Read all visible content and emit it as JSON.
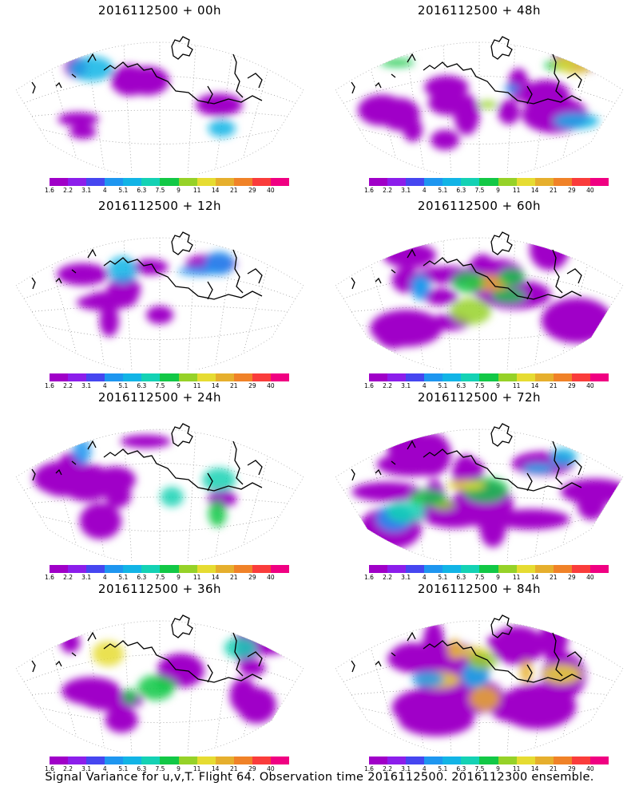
{
  "panels": [
    {
      "title": "2016112500 + 00h",
      "intensity": 0.15
    },
    {
      "title": "2016112500 + 48h",
      "intensity": 0.55
    },
    {
      "title": "2016112500 + 12h",
      "intensity": 0.25
    },
    {
      "title": "2016112500 + 60h",
      "intensity": 0.65
    },
    {
      "title": "2016112500 + 24h",
      "intensity": 0.35
    },
    {
      "title": "2016112500 + 72h",
      "intensity": 0.75
    },
    {
      "title": "2016112500 + 36h",
      "intensity": 0.45
    },
    {
      "title": "2016112500 + 84h",
      "intensity": 0.85
    }
  ],
  "colorbar": {
    "labels": [
      "1.6",
      "2.2",
      "3.1",
      "4",
      "5.1",
      "6.3",
      "7.5",
      "9",
      "11",
      "14",
      "21",
      "29",
      "40"
    ],
    "colors": [
      "#a000c8",
      "#8c1eeb",
      "#4646f0",
      "#1e96f0",
      "#12b4e6",
      "#14d2b4",
      "#12c846",
      "#96d228",
      "#e6dc32",
      "#e6af2d",
      "#f08228",
      "#fa3c3c",
      "#f00082"
    ]
  },
  "footer": "Signal Variance for u,v,T. Flight 64. Observation time 2016112500. 2016112300 ensemble."
}
